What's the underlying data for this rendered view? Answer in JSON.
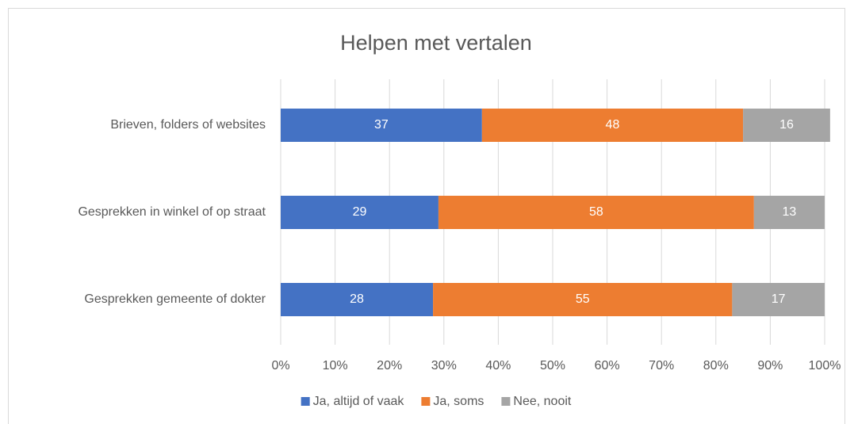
{
  "chart_data": {
    "type": "stacked_bar_horizontal",
    "title": "Helpen met vertalen",
    "categories": [
      "Brieven, folders of websites",
      "Gesprekken in winkel of op straat",
      "Gesprekken gemeente of dokter"
    ],
    "series": [
      {
        "name": "Ja, altijd of vaak",
        "color": "#4472c4",
        "values": [
          37,
          29,
          28
        ]
      },
      {
        "name": "Ja, soms",
        "color": "#ed7d31",
        "values": [
          48,
          58,
          55
        ]
      },
      {
        "name": "Nee, nooit",
        "color": "#a5a5a5",
        "values": [
          16,
          13,
          17
        ]
      }
    ],
    "xlim": [
      0,
      100
    ],
    "xticks": [
      {
        "value": 0,
        "label": "0%"
      },
      {
        "value": 10,
        "label": "10%"
      },
      {
        "value": 20,
        "label": "20%"
      },
      {
        "value": 30,
        "label": "30%"
      },
      {
        "value": 40,
        "label": "40%"
      },
      {
        "value": 50,
        "label": "50%"
      },
      {
        "value": 60,
        "label": "60%"
      },
      {
        "value": 70,
        "label": "70%"
      },
      {
        "value": 80,
        "label": "80%"
      },
      {
        "value": 90,
        "label": "90%"
      },
      {
        "value": 100,
        "label": "100%"
      }
    ],
    "grid": true,
    "legend": "bottom"
  }
}
